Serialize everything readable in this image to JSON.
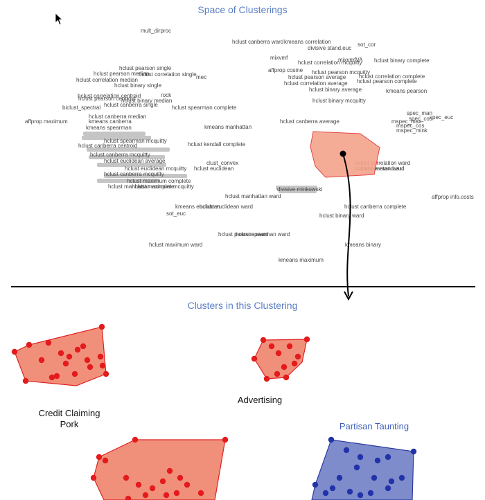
{
  "space_title": "Space of Clusterings",
  "clusters_title": "Clusters in this Clustering",
  "method_labels": [
    "mult_dirproc",
    "hclust canberra ward",
    "kmeans correlation",
    "divisive stand.euc",
    "sot_cor",
    "mixvmf",
    "mixvmfVA",
    "hclust correlation mcquitty",
    "hclust binary complete",
    "affprop cosine",
    "hclust pearson mcquitty",
    "hclust pearson average",
    "hclust correlation complete",
    "hclust correlation average",
    "hclust pearson complete",
    "hclust binary average",
    "kmeans pearson",
    "hclust binary mcquitty",
    "hclust pearson single",
    "hclust pearson median",
    "hclust correlation single",
    "mec",
    "hclust correlation median",
    "hclust binary single",
    "hclust correlation centroid",
    "hclust pearson centroid",
    "rock",
    "hclust binary median",
    "hclust canberra single",
    "biclust_spectral",
    "hclust spearman complete",
    "spec_man",
    "hclust canberra median",
    "spec_cos",
    "spec_euc",
    "affprop maximum",
    "kmeans canberra",
    "kmeans manhattan",
    "hclust canberra average",
    "mspec_max",
    "mspec_cos",
    "mspec_mink",
    "kmeans spearman",
    "hclust canberra centroid",
    "hclust spearman mcquitty",
    "hclust kendall complete",
    "clust_convex",
    "hclust euclidean average",
    "hclust euclidean mcquitty",
    "hclust euclidean",
    "hclust canberra mcquitty",
    "hclust correlation ward",
    "hclust pearson ward",
    "divisive stand.euc",
    "hclust maximum complete",
    "hclust maximum mcquitty",
    "hclust manhattan complete",
    "hclust canberra mcquitty",
    "divisive minkowski",
    "hclust manhattan ward",
    "affprop info.costs",
    "kmeans euclidean",
    "hclust euclidean ward",
    "hclust canberra complete",
    "sot_euc",
    "hclust binary ward",
    "hclust pearson ward",
    "hclust spearman ward",
    "hclust maximum ward",
    "kmeans binary",
    "kmeans maximum"
  ],
  "clusters": [
    {
      "label": "Credit Claiming\nPork",
      "color": "#f0907a",
      "stroke": "#e02020",
      "point_color": "#e41a1c"
    },
    {
      "label": "Advertising",
      "color": "#f0907a",
      "stroke": "#e02020",
      "point_color": "#e41a1c"
    },
    {
      "label": "Partisan Taunting",
      "color": "#7f8ccc",
      "stroke": "#2a3aa0",
      "point_color": "#2233aa",
      "label_color": "#3d5fb8"
    },
    {
      "label": "",
      "color": "#f0907a",
      "stroke": "#e02020",
      "point_color": "#e41a1c"
    }
  ],
  "colors": {
    "title_color": "#5b7fc4",
    "highlight_fill": "#f4a48c",
    "highlight_stroke": "#e03030"
  }
}
